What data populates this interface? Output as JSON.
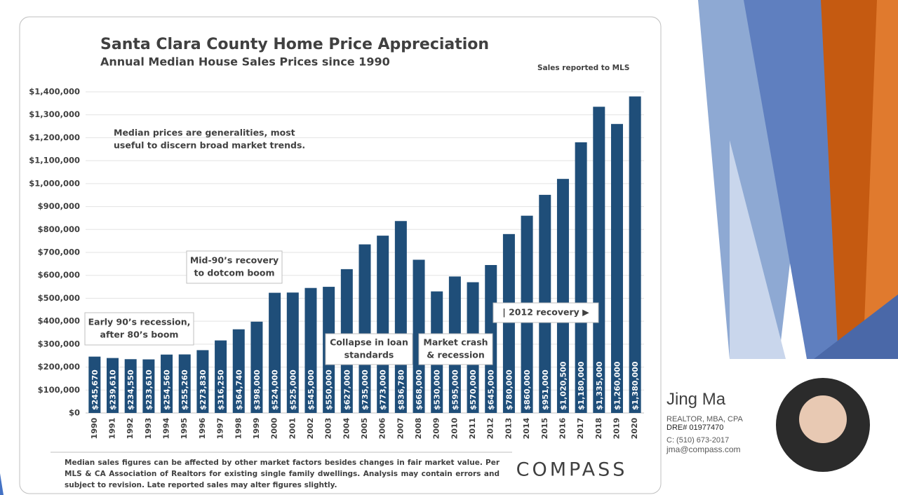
{
  "chart_data": {
    "type": "bar",
    "title": "Santa Clara County Home Price Appreciation",
    "subtitle": "Annual Median House Sales Prices since 1990",
    "source_note": "Sales reported to MLS",
    "color": "#1f4e79",
    "grid": true,
    "categories": [
      "1990",
      "1991",
      "1992",
      "1993",
      "1994",
      "1995",
      "1996",
      "1997",
      "1998",
      "1999",
      "2000",
      "2001",
      "2002",
      "2003",
      "2004",
      "2005",
      "2006",
      "2007",
      "2008",
      "2009",
      "2010",
      "2011",
      "2012",
      "2013",
      "2014",
      "2015",
      "2016",
      "2017",
      "2018",
      "2019",
      "2020"
    ],
    "values": [
      245670,
      239610,
      234550,
      233610,
      254560,
      255260,
      273830,
      316250,
      364740,
      398000,
      524000,
      525000,
      545000,
      550000,
      627000,
      735000,
      773000,
      836780,
      668000,
      530000,
      595000,
      570000,
      645000,
      780000,
      860000,
      951000,
      1020500,
      1180000,
      1335000,
      1260000,
      1380000
    ],
    "value_labels": [
      "$245,670",
      "$239,610",
      "$234,550",
      "$233,610",
      "$254,560",
      "$255,260",
      "$273,830",
      "$316,250",
      "$364,740",
      "$398,000",
      "$524,000",
      "$525,000",
      "$545,000",
      "$550,000",
      "$627,000",
      "$735,000",
      "$773,000",
      "$836,780",
      "$668,000",
      "$530,000",
      "$595,000",
      "$570,000",
      "$645,000",
      "$780,000",
      "$860,000",
      "$951,000",
      "$1,020,500",
      "$1,180,000",
      "$1,335,000",
      "$1,260,000",
      "$1,380,000"
    ],
    "ylim": [
      0,
      1400000
    ],
    "yticks": [
      {
        "value": 0,
        "label": "$0"
      },
      {
        "value": 100000,
        "label": "$100,000"
      },
      {
        "value": 200000,
        "label": "$200,000"
      },
      {
        "value": 300000,
        "label": "$300,000"
      },
      {
        "value": 400000,
        "label": "$400,000"
      },
      {
        "value": 500000,
        "label": "$500,000"
      },
      {
        "value": 600000,
        "label": "$600,000"
      },
      {
        "value": 700000,
        "label": "$700,000"
      },
      {
        "value": 800000,
        "label": "$800,000"
      },
      {
        "value": 900000,
        "label": "$900,000"
      },
      {
        "value": 1000000,
        "label": "$1,000,000"
      },
      {
        "value": 1100000,
        "label": "$1,100,000"
      },
      {
        "value": 1200000,
        "label": "$1,200,000"
      },
      {
        "value": 1300000,
        "label": "$1,300,000"
      },
      {
        "value": 1400000,
        "label": "$1,400,000"
      }
    ],
    "annotations": [
      {
        "lines": [
          "Median prices are generalities, most",
          "useful to discern broad market trends."
        ]
      },
      {
        "lines": [
          "Mid-90’s recovery",
          "to dotcom boom"
        ]
      },
      {
        "lines": [
          "Early 90’s recession,",
          "after 80’s boom"
        ]
      },
      {
        "lines": [
          "Collapse in loan",
          "standards"
        ]
      },
      {
        "lines": [
          "Market crash",
          "& recession"
        ]
      },
      {
        "lines": [
          "| 2012 recovery ▶"
        ]
      }
    ],
    "footnote": "Median sales figures can be affected by other market factors besides changes in fair market value. Per MLS & CA Association of Realtors for existing single family dwellings. Analysis may contain errors and subject to revision. Late reported sales may alter figures slightly."
  },
  "brand": "COMPASS",
  "agent": {
    "name": "Jing Ma",
    "title": "REALTOR, MBA, CPA",
    "license": "DRE# 01977470",
    "phone": "C: (510) 673-2017",
    "email": "jma@compass.com"
  }
}
